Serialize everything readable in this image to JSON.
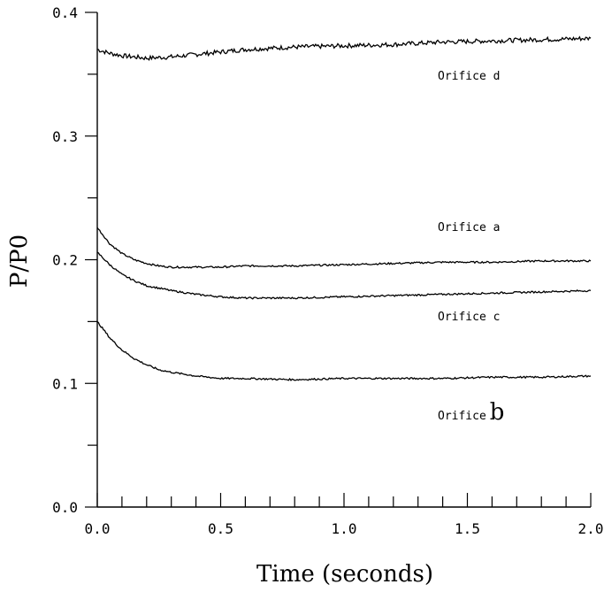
{
  "chart_data": {
    "type": "line",
    "xlabel": "Time (seconds)",
    "ylabel": "P/P0",
    "xlim": [
      0.0,
      2.0
    ],
    "ylim": [
      0.0,
      0.4
    ],
    "x_ticks": [
      "0.0",
      "0.5",
      "1.0",
      "1.5",
      "2.0"
    ],
    "y_ticks": [
      "0.0",
      "0.1",
      "0.2",
      "0.3",
      "0.4"
    ],
    "grid": false,
    "series": [
      {
        "name": "Orifice d",
        "x": [
          0.0,
          0.05,
          0.1,
          0.15,
          0.2,
          0.3,
          0.4,
          0.5,
          0.6,
          0.8,
          1.0,
          1.2,
          1.4,
          1.6,
          1.8,
          2.0
        ],
        "y": [
          0.37,
          0.367,
          0.365,
          0.364,
          0.363,
          0.364,
          0.366,
          0.368,
          0.37,
          0.372,
          0.373,
          0.374,
          0.376,
          0.377,
          0.378,
          0.379
        ]
      },
      {
        "name": "Orifice a",
        "x": [
          0.0,
          0.05,
          0.1,
          0.15,
          0.2,
          0.25,
          0.3,
          0.4,
          0.5,
          0.6,
          0.8,
          1.0,
          1.2,
          1.4,
          1.6,
          1.8,
          2.0
        ],
        "y": [
          0.226,
          0.213,
          0.205,
          0.2,
          0.197,
          0.195,
          0.194,
          0.194,
          0.194,
          0.195,
          0.195,
          0.196,
          0.197,
          0.198,
          0.198,
          0.199,
          0.199
        ]
      },
      {
        "name": "Orifice c",
        "x": [
          0.0,
          0.05,
          0.1,
          0.15,
          0.2,
          0.3,
          0.4,
          0.5,
          0.6,
          0.7,
          0.8,
          1.0,
          1.2,
          1.4,
          1.6,
          1.8,
          2.0
        ],
        "y": [
          0.206,
          0.196,
          0.188,
          0.183,
          0.179,
          0.175,
          0.172,
          0.17,
          0.169,
          0.169,
          0.169,
          0.17,
          0.171,
          0.172,
          0.173,
          0.174,
          0.175
        ]
      },
      {
        "name": "Orifice b",
        "x": [
          0.0,
          0.05,
          0.1,
          0.15,
          0.2,
          0.25,
          0.3,
          0.4,
          0.5,
          0.6,
          0.8,
          1.0,
          1.2,
          1.4,
          1.6,
          1.8,
          2.0
        ],
        "y": [
          0.15,
          0.137,
          0.127,
          0.12,
          0.115,
          0.111,
          0.109,
          0.106,
          0.104,
          0.104,
          0.103,
          0.104,
          0.104,
          0.104,
          0.105,
          0.105,
          0.106
        ]
      }
    ],
    "annotations": [
      {
        "text": "Orifice d",
        "series": "Orifice d"
      },
      {
        "text": "Orifice a",
        "series": "Orifice a"
      },
      {
        "text": "Orifice c",
        "series": "Orifice c"
      },
      {
        "text": "Orifice",
        "suffix": "b",
        "series": "Orifice b"
      }
    ]
  }
}
